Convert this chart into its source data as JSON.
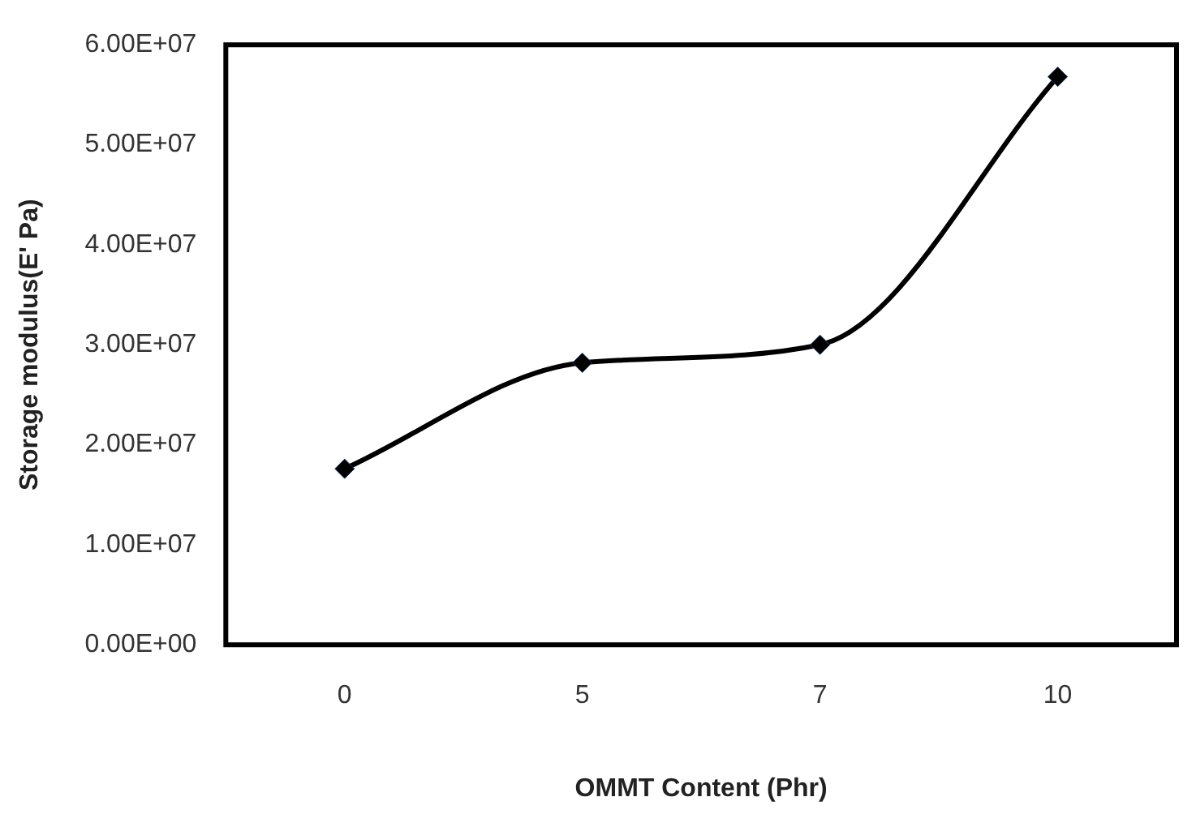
{
  "chart_data": {
    "type": "line",
    "xlabel": "OMMT Content (Phr)",
    "ylabel": "Storage modulus(E' Pa)",
    "categories": [
      "0",
      "5",
      "7",
      "10"
    ],
    "series": [
      {
        "color": "#000000",
        "values": [
          17600000,
          28200000,
          30000000,
          56800000
        ]
      }
    ],
    "ylim": [
      0,
      60000000
    ],
    "yticks": [
      {
        "value": 0,
        "label": "0.00E+00"
      },
      {
        "value": 10000000,
        "label": "1.00E+07"
      },
      {
        "value": 20000000,
        "label": "2.00E+07"
      },
      {
        "value": 30000000,
        "label": "3.00E+07"
      },
      {
        "value": 40000000,
        "label": "4.00E+07"
      },
      {
        "value": 50000000,
        "label": "5.00E+07"
      },
      {
        "value": 60000000,
        "label": "6.00E+07"
      }
    ],
    "grid": false,
    "legend": false,
    "marker": "diamond",
    "line_style": "solid"
  }
}
